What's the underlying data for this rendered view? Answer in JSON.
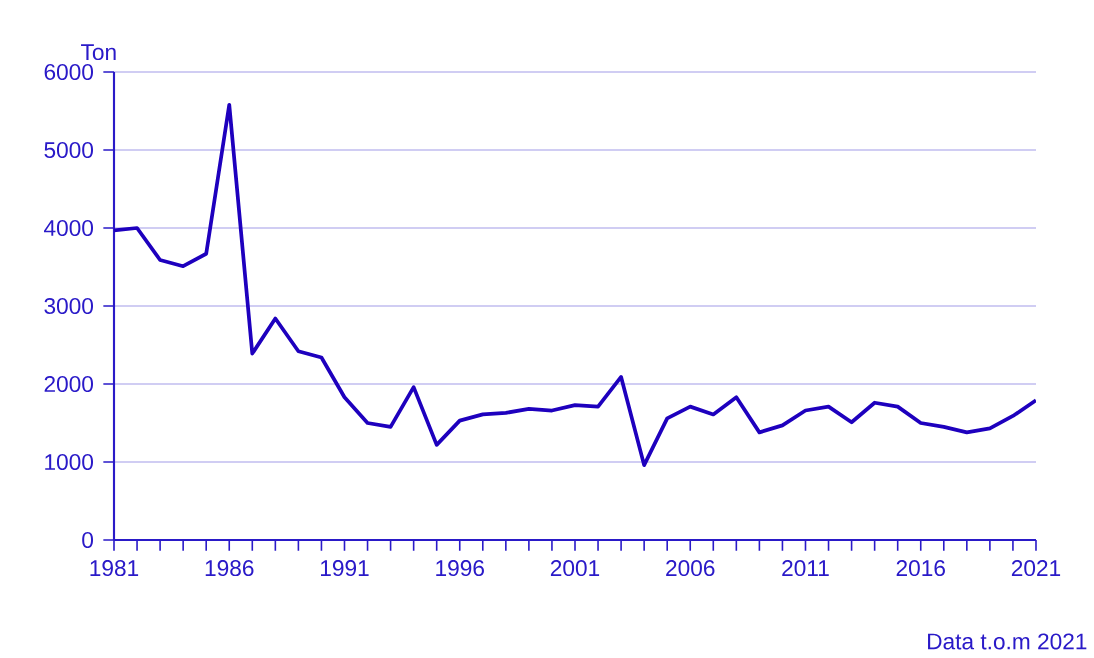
{
  "chart_data": {
    "type": "line",
    "ylabel": "Ton",
    "annotations": [
      "Data t.o.m 2021"
    ],
    "x": [
      1981,
      1982,
      1983,
      1984,
      1985,
      1986,
      1987,
      1988,
      1989,
      1990,
      1991,
      1992,
      1993,
      1994,
      1995,
      1996,
      1997,
      1998,
      1999,
      2000,
      2001,
      2002,
      2003,
      2004,
      2005,
      2006,
      2007,
      2008,
      2009,
      2010,
      2011,
      2012,
      2013,
      2014,
      2015,
      2016,
      2017,
      2018,
      2019,
      2020,
      2021
    ],
    "series": [
      {
        "color": "#1e00be",
        "values": [
          3970,
          4000,
          3590,
          3510,
          3670,
          5580,
          2390,
          2840,
          2420,
          2340,
          1830,
          1500,
          1450,
          1960,
          1220,
          1530,
          1610,
          1630,
          1680,
          1660,
          1730,
          1710,
          2090,
          960,
          1560,
          1710,
          1610,
          1830,
          1380,
          1470,
          1660,
          1710,
          1510,
          1760,
          1710,
          1500,
          1450,
          1380,
          1430,
          1590,
          1790
        ]
      }
    ],
    "xlim": [
      1981,
      2021
    ],
    "ylim": [
      0,
      6000
    ],
    "xticks": [
      1981,
      {
        "value": 1982,
        "label": null
      },
      {
        "value": 1983,
        "label": null
      },
      {
        "value": 1984,
        "label": null
      },
      {
        "value": 1985,
        "label": null
      },
      1986,
      {
        "value": 1987,
        "label": null
      },
      {
        "value": 1988,
        "label": null
      },
      {
        "value": 1989,
        "label": null
      },
      {
        "value": 1990,
        "label": null
      },
      1991,
      {
        "value": 1992,
        "label": null
      },
      {
        "value": 1993,
        "label": null
      },
      {
        "value": 1994,
        "label": null
      },
      {
        "value": 1995,
        "label": null
      },
      1996,
      {
        "value": 1997,
        "label": null
      },
      {
        "value": 1998,
        "label": null
      },
      {
        "value": 1999,
        "label": null
      },
      {
        "value": 2000,
        "label": null
      },
      2001,
      {
        "value": 2002,
        "label": null
      },
      {
        "value": 2003,
        "label": null
      },
      {
        "value": 2004,
        "label": null
      },
      {
        "value": 2005,
        "label": null
      },
      2006,
      {
        "value": 2007,
        "label": null
      },
      {
        "value": 2008,
        "label": null
      },
      {
        "value": 2009,
        "label": null
      },
      {
        "value": 2010,
        "label": null
      },
      2011,
      {
        "value": 2012,
        "label": null
      },
      {
        "value": 2013,
        "label": null
      },
      {
        "value": 2014,
        "label": null
      },
      {
        "value": 2015,
        "label": null
      },
      2016,
      {
        "value": 2017,
        "label": null
      },
      {
        "value": 2018,
        "label": null
      },
      {
        "value": 2019,
        "label": null
      },
      {
        "value": 2020,
        "label": null
      },
      2021
    ],
    "yticks": [
      0,
      1000,
      2000,
      3000,
      4000,
      5000,
      6000
    ],
    "grid": "y",
    "marker": "none",
    "line_style": "solid"
  }
}
